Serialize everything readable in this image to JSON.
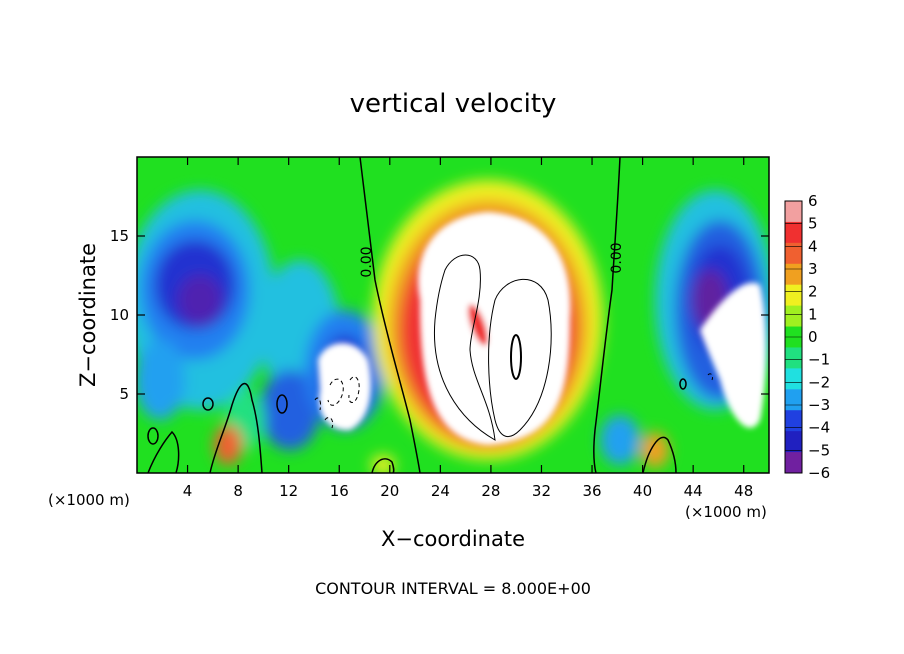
{
  "chart_data": {
    "type": "heatmap",
    "title": "vertical velocity",
    "xlabel": "X−coordinate",
    "ylabel": "Z−coordinate",
    "x_unit": "(×1000 m)",
    "z_unit": "(×1000 m)",
    "xlim": [
      0,
      50
    ],
    "ylim": [
      0,
      20
    ],
    "x_ticks": [
      4,
      8,
      12,
      16,
      20,
      24,
      28,
      32,
      36,
      40,
      44,
      48
    ],
    "y_ticks": [
      5,
      10,
      15
    ],
    "colorbar": {
      "values": [
        6,
        5,
        4,
        3,
        2,
        1,
        0,
        -1,
        -2,
        -3,
        -4,
        -5,
        -6
      ],
      "labels": [
        "6",
        "5",
        "4",
        "3",
        "2",
        "1",
        "0",
        "−1",
        "−2",
        "−3",
        "−4",
        "−5",
        "−6"
      ],
      "colors": [
        "#f2a0a0",
        "#f03030",
        "#f06030",
        "#f0a020",
        "#f0f020",
        "#a0f020",
        "#20e020",
        "#20e080",
        "#20e0e0",
        "#20a0f0",
        "#2040e0",
        "#2020c0",
        "#7020a0"
      ]
    },
    "contour_labels": [
      "0.00",
      "0.00"
    ],
    "contour_interval": "CONTOUR INTERVAL = 8.000E+00",
    "grid": false
  }
}
